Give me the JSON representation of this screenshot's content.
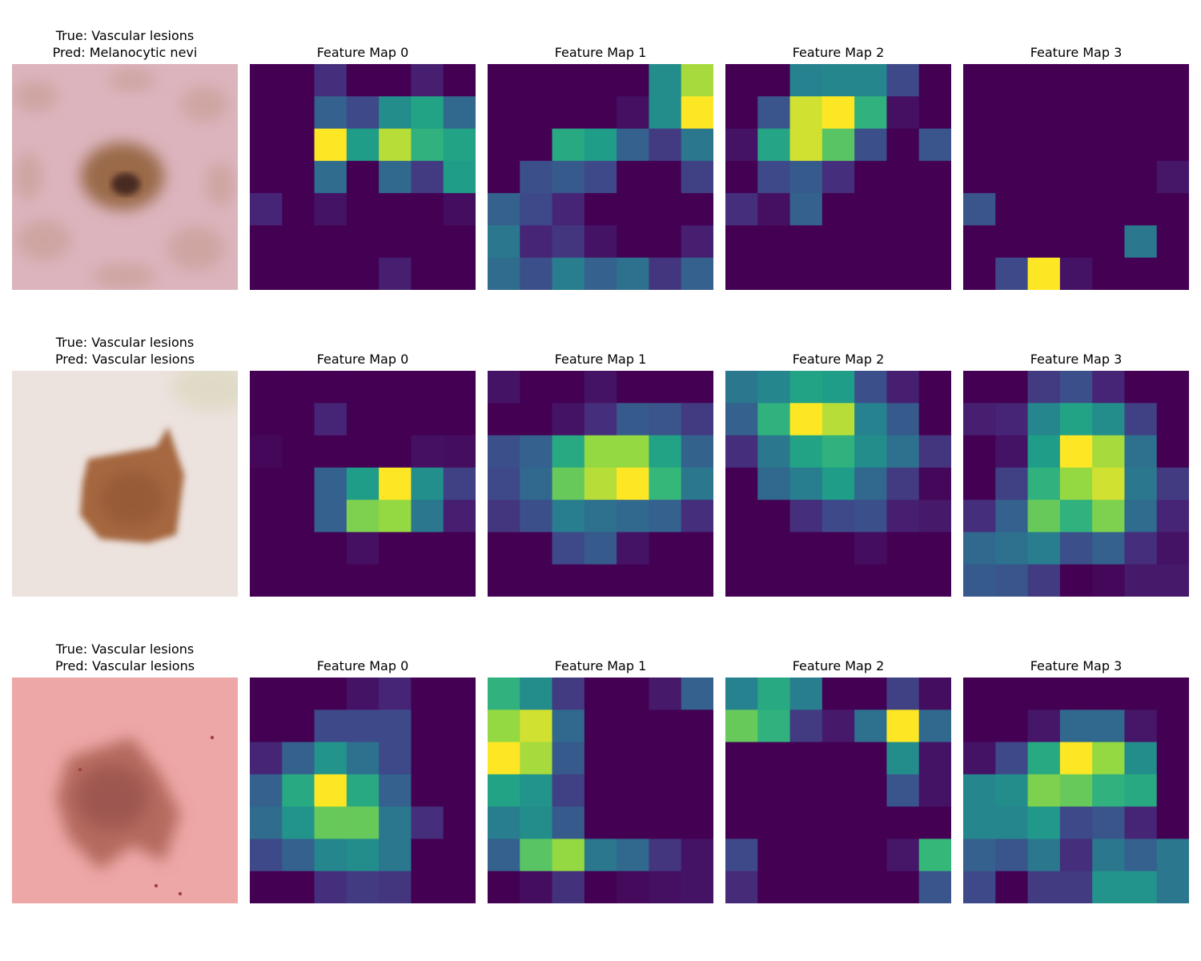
{
  "figure": {
    "rows": [
      {
        "true_label": "True: Vascular lesions",
        "pred_label": "Pred: Melanocytic nevi",
        "skin": {
          "background": "#dcb4bd",
          "lesion_color": "#9a6a48",
          "lesion_core": "#4a2a20"
        }
      },
      {
        "true_label": "True: Vascular lesions",
        "pred_label": "Pred: Vascular lesions",
        "skin": {
          "background": "#ece2de",
          "lesion_color": "#a5683f",
          "lesion_core": "#8a5030"
        }
      },
      {
        "true_label": "True: Vascular lesions",
        "pred_label": "Pred: Vascular lesions",
        "skin": {
          "background": "#eda7a6",
          "lesion_color": "#b56a5e",
          "lesion_core": "#8d4a44"
        }
      }
    ],
    "feature_map_titles": [
      "Feature Map 0",
      "Feature Map 1",
      "Feature Map 2",
      "Feature Map 3"
    ],
    "colormap": "viridis"
  },
  "chart_data": {
    "type": "heatmap",
    "grid_size": [
      7,
      7
    ],
    "value_range": [
      0,
      1
    ],
    "maps": [
      [
        [
          [
            0,
            0,
            0.15,
            0,
            0,
            0.1,
            0
          ],
          [
            0,
            0,
            0.35,
            0.25,
            0.55,
            0.65,
            0.38
          ],
          [
            0,
            0,
            1.0,
            0.62,
            0.92,
            0.72,
            0.65
          ],
          [
            0,
            0,
            0.4,
            0,
            0.38,
            0.2,
            0.62
          ],
          [
            0.12,
            0,
            0.06,
            0,
            0,
            0,
            0.04
          ],
          [
            0,
            0,
            0,
            0,
            0,
            0,
            0
          ],
          [
            0,
            0,
            0,
            0,
            0.1,
            0,
            0
          ]
        ],
        [
          [
            0,
            0,
            0,
            0,
            0,
            0.55,
            0.9
          ],
          [
            0,
            0,
            0,
            0,
            0.05,
            0.55,
            1.0
          ],
          [
            0,
            0,
            0.68,
            0.62,
            0.35,
            0.2,
            0.45
          ],
          [
            0,
            0.28,
            0.32,
            0.25,
            0,
            0,
            0.22
          ],
          [
            0.35,
            0.25,
            0.12,
            0,
            0,
            0,
            0
          ],
          [
            0.45,
            0.12,
            0.18,
            0.06,
            0,
            0,
            0.1
          ],
          [
            0.4,
            0.28,
            0.48,
            0.35,
            0.42,
            0.18,
            0.35
          ]
        ],
        [
          [
            0,
            0,
            0.5,
            0.52,
            0.52,
            0.25,
            0
          ],
          [
            0,
            0.3,
            0.95,
            1.0,
            0.72,
            0.05,
            0
          ],
          [
            0.06,
            0.66,
            0.95,
            0.8,
            0.28,
            0,
            0.3
          ],
          [
            0,
            0.25,
            0.32,
            0.15,
            0,
            0,
            0
          ],
          [
            0.15,
            0.05,
            0.35,
            0,
            0,
            0,
            0
          ],
          [
            0,
            0,
            0,
            0,
            0,
            0,
            0
          ],
          [
            0,
            0,
            0,
            0,
            0,
            0,
            0
          ]
        ],
        [
          [
            0,
            0,
            0,
            0,
            0,
            0,
            0
          ],
          [
            0,
            0,
            0,
            0,
            0,
            0,
            0
          ],
          [
            0,
            0,
            0,
            0,
            0,
            0,
            0
          ],
          [
            0,
            0,
            0,
            0,
            0,
            0,
            0.07
          ],
          [
            0.3,
            0,
            0,
            0,
            0,
            0,
            0
          ],
          [
            0,
            0,
            0,
            0,
            0,
            0.45,
            0
          ],
          [
            0,
            0.25,
            1.0,
            0.06,
            0,
            0,
            0
          ]
        ]
      ],
      [
        [
          [
            0,
            0,
            0,
            0,
            0,
            0,
            0
          ],
          [
            0,
            0,
            0.12,
            0,
            0,
            0,
            0
          ],
          [
            0.02,
            0,
            0,
            0,
            0,
            0.05,
            0.04
          ],
          [
            0,
            0,
            0.35,
            0.62,
            1.0,
            0.56,
            0.22
          ],
          [
            0,
            0,
            0.35,
            0.85,
            0.88,
            0.45,
            0.1
          ],
          [
            0,
            0,
            0,
            0.05,
            0,
            0,
            0
          ],
          [
            0,
            0,
            0,
            0,
            0,
            0,
            0
          ]
        ],
        [
          [
            0.06,
            0,
            0,
            0.06,
            0,
            0,
            0
          ],
          [
            0,
            0,
            0.06,
            0.15,
            0.32,
            0.3,
            0.2
          ],
          [
            0.28,
            0.35,
            0.68,
            0.88,
            0.88,
            0.65,
            0.36
          ],
          [
            0.25,
            0.38,
            0.82,
            0.92,
            1.0,
            0.75,
            0.45
          ],
          [
            0.18,
            0.28,
            0.48,
            0.42,
            0.38,
            0.35,
            0.15
          ],
          [
            0,
            0,
            0.25,
            0.32,
            0.06,
            0,
            0
          ],
          [
            0,
            0,
            0,
            0,
            0,
            0,
            0
          ]
        ],
        [
          [
            0.45,
            0.52,
            0.65,
            0.62,
            0.28,
            0.1,
            0
          ],
          [
            0.35,
            0.72,
            1.0,
            0.92,
            0.5,
            0.32,
            0
          ],
          [
            0.15,
            0.45,
            0.65,
            0.72,
            0.55,
            0.42,
            0.18
          ],
          [
            0,
            0.38,
            0.48,
            0.62,
            0.38,
            0.2,
            0.02
          ],
          [
            0,
            0,
            0.15,
            0.25,
            0.28,
            0.1,
            0.08
          ],
          [
            0,
            0,
            0,
            0,
            0.04,
            0,
            0
          ],
          [
            0,
            0,
            0,
            0,
            0,
            0,
            0
          ]
        ],
        [
          [
            0,
            0,
            0.2,
            0.28,
            0.12,
            0,
            0
          ],
          [
            0.1,
            0.12,
            0.52,
            0.65,
            0.55,
            0.22,
            0
          ],
          [
            0,
            0.06,
            0.62,
            1.0,
            0.9,
            0.42,
            0
          ],
          [
            0,
            0.22,
            0.72,
            0.88,
            0.95,
            0.45,
            0.2
          ],
          [
            0.15,
            0.35,
            0.82,
            0.72,
            0.85,
            0.4,
            0.12
          ],
          [
            0.38,
            0.42,
            0.48,
            0.28,
            0.35,
            0.15,
            0.06
          ],
          [
            0.32,
            0.3,
            0.2,
            0,
            0.02,
            0.08,
            0.08
          ]
        ]
      ],
      [
        [
          [
            0,
            0,
            0,
            0.06,
            0.12,
            0,
            0
          ],
          [
            0,
            0,
            0.25,
            0.25,
            0.25,
            0,
            0
          ],
          [
            0.12,
            0.35,
            0.58,
            0.42,
            0.25,
            0,
            0
          ],
          [
            0.35,
            0.68,
            1.0,
            0.68,
            0.35,
            0,
            0
          ],
          [
            0.4,
            0.58,
            0.82,
            0.82,
            0.45,
            0.15,
            0
          ],
          [
            0.25,
            0.35,
            0.52,
            0.55,
            0.45,
            0,
            0
          ],
          [
            0,
            0,
            0.15,
            0.2,
            0.18,
            0,
            0
          ]
        ],
        [
          [
            0.72,
            0.55,
            0.2,
            0,
            0,
            0.08,
            0.35
          ],
          [
            0.88,
            0.95,
            0.38,
            0,
            0,
            0,
            0
          ],
          [
            1.0,
            0.9,
            0.32,
            0,
            0,
            0,
            0
          ],
          [
            0.65,
            0.58,
            0.22,
            0,
            0,
            0,
            0
          ],
          [
            0.48,
            0.55,
            0.32,
            0,
            0,
            0,
            0
          ],
          [
            0.35,
            0.8,
            0.88,
            0.45,
            0.38,
            0.18,
            0.06
          ],
          [
            0,
            0.04,
            0.16,
            0,
            0.03,
            0.05,
            0.06
          ]
        ],
        [
          [
            0.5,
            0.68,
            0.48,
            0,
            0,
            0.22,
            0.04
          ],
          [
            0.82,
            0.72,
            0.2,
            0.08,
            0.42,
            1.0,
            0.38
          ],
          [
            0,
            0,
            0,
            0,
            0,
            0.55,
            0.06
          ],
          [
            0,
            0,
            0,
            0,
            0,
            0.3,
            0.06
          ],
          [
            0,
            0,
            0,
            0,
            0,
            0,
            0
          ],
          [
            0.25,
            0,
            0,
            0,
            0,
            0.07,
            0.75
          ],
          [
            0.14,
            0,
            0,
            0,
            0,
            0,
            0.3
          ]
        ],
        [
          [
            0,
            0,
            0,
            0,
            0,
            0,
            0
          ],
          [
            0,
            0,
            0.07,
            0.38,
            0.38,
            0.07,
            0
          ],
          [
            0.06,
            0.25,
            0.68,
            1.0,
            0.88,
            0.55,
            0
          ],
          [
            0.52,
            0.55,
            0.85,
            0.82,
            0.72,
            0.68,
            0
          ],
          [
            0.52,
            0.52,
            0.6,
            0.25,
            0.3,
            0.12,
            0
          ],
          [
            0.35,
            0.3,
            0.45,
            0.15,
            0.45,
            0.35,
            0.45
          ],
          [
            0.25,
            0,
            0.2,
            0.2,
            0.58,
            0.58,
            0.45
          ]
        ]
      ]
    ]
  }
}
